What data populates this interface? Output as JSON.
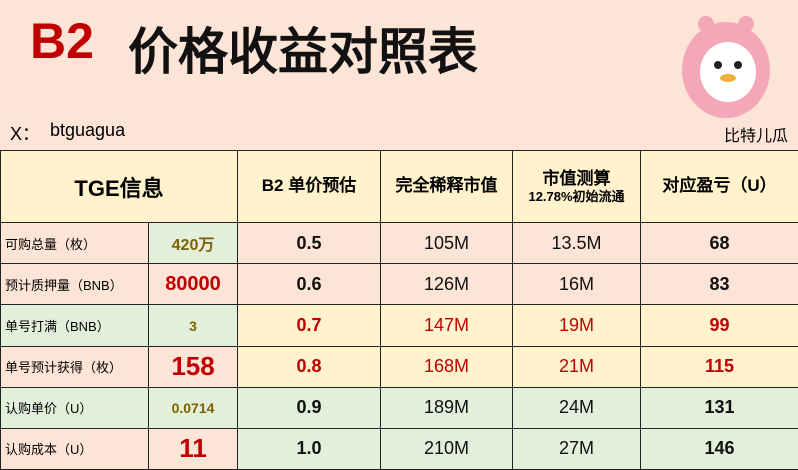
{
  "header": {
    "title_code": "B2",
    "title": "价格收益对照表",
    "author_label": "X：",
    "author": "btguagua",
    "brand": "比特儿瓜"
  },
  "table": {
    "left_header": "TGE信息",
    "columns": [
      {
        "title": "B2 单价预估"
      },
      {
        "title": "完全稀释市值"
      },
      {
        "title": "市值测算",
        "subtitle": "12.78%初始流通"
      },
      {
        "title": "对应盈亏（U）"
      }
    ],
    "info": [
      [
        "可购总量（枚）",
        "420万"
      ],
      [
        "预计质押量（BNB）",
        "80000"
      ],
      [
        "单号打满（BNB）",
        "3"
      ],
      [
        "单号预计获得（枚）",
        "158"
      ],
      [
        "认购单价（U）",
        "0.0714"
      ],
      [
        "认购成本（U）",
        "11"
      ]
    ],
    "rows": [
      [
        "0.5",
        "105M",
        "13.5M",
        "68"
      ],
      [
        "0.6",
        "126M",
        "16M",
        "83"
      ],
      [
        "0.7",
        "147M",
        "19M",
        "99"
      ],
      [
        "0.8",
        "168M",
        "21M",
        "115"
      ],
      [
        "0.9",
        "189M",
        "24M",
        "131"
      ],
      [
        "1.0",
        "210M",
        "27M",
        "146"
      ]
    ]
  }
}
